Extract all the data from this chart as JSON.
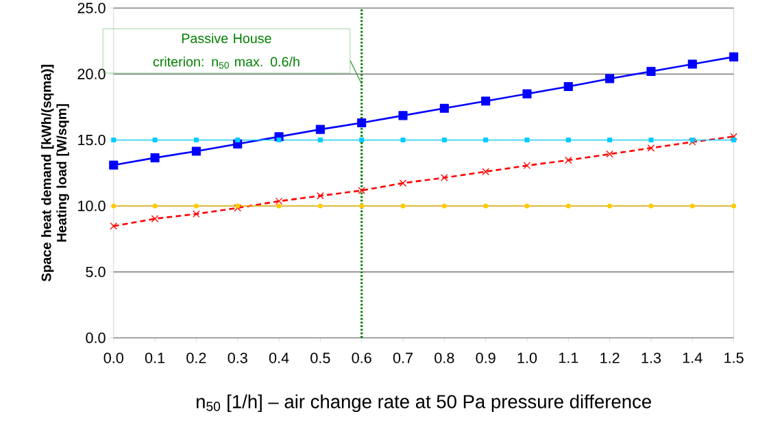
{
  "chart_data": {
    "type": "line",
    "xlabel": "n$_{50}$ [1/h] – air change rate at 50 Pa pressure difference",
    "ylabel": "Space heat demand [kWh/(sqma)] Heating load [W/sqm]",
    "x": [
      0.0,
      0.1,
      0.2,
      0.3,
      0.4,
      0.5,
      0.6,
      0.7,
      0.8,
      0.9,
      1.0,
      1.1,
      1.2,
      1.3,
      1.4,
      1.5
    ],
    "series": [
      {
        "color": "#0000ff",
        "marker": "square",
        "line_style": "solid",
        "values": [
          13.1,
          13.65,
          14.15,
          14.7,
          15.25,
          15.8,
          16.3,
          16.85,
          17.4,
          17.95,
          18.5,
          19.05,
          19.65,
          20.2,
          20.75,
          21.3
        ]
      },
      {
        "color": "#ff0000",
        "marker": "cross",
        "line_style": "dashed",
        "values": [
          8.47,
          9.03,
          9.39,
          9.85,
          10.36,
          10.77,
          11.17,
          11.73,
          12.14,
          12.6,
          13.06,
          13.47,
          13.93,
          14.39,
          14.85,
          15.26
        ]
      },
      {
        "color": "#00ccff",
        "marker": "square",
        "line_style": "solid",
        "values": [
          15,
          15,
          15,
          15,
          15,
          15,
          15,
          15,
          15,
          15,
          15,
          15,
          15,
          15,
          15,
          15
        ]
      },
      {
        "color": "#ffcc00",
        "marker": "circle",
        "line_style": "solid",
        "values": [
          10,
          10,
          10,
          10,
          10,
          10,
          10,
          10,
          10,
          10,
          10,
          10,
          10,
          10,
          10,
          10
        ]
      }
    ],
    "ref_lines": [
      {
        "axis": "x",
        "value": 0.6,
        "color": "#008000",
        "line_style": "dotted"
      }
    ],
    "annotations": [
      "Passive House criterion: n$_{50}$ max. 0.6/h"
    ],
    "xlim": [
      0,
      1.5
    ],
    "ylim": [
      0,
      25
    ],
    "xticks": [
      {
        "value": 0,
        "label": "0.0"
      },
      0.1,
      0.2,
      0.3,
      0.4,
      0.5,
      0.6,
      0.7,
      0.8,
      0.9,
      {
        "value": 1,
        "label": "1.0"
      },
      1.1,
      1.2,
      1.3,
      1.4,
      1.5
    ],
    "yticks": [
      {
        "value": 0,
        "label": "0.0"
      },
      {
        "value": 5,
        "label": "5.0"
      },
      {
        "value": 10,
        "label": "10.0"
      },
      {
        "value": 15,
        "label": "15.0"
      },
      {
        "value": 20,
        "label": "20.0"
      },
      {
        "value": 25,
        "label": "25.0"
      }
    ],
    "grid": "y"
  }
}
